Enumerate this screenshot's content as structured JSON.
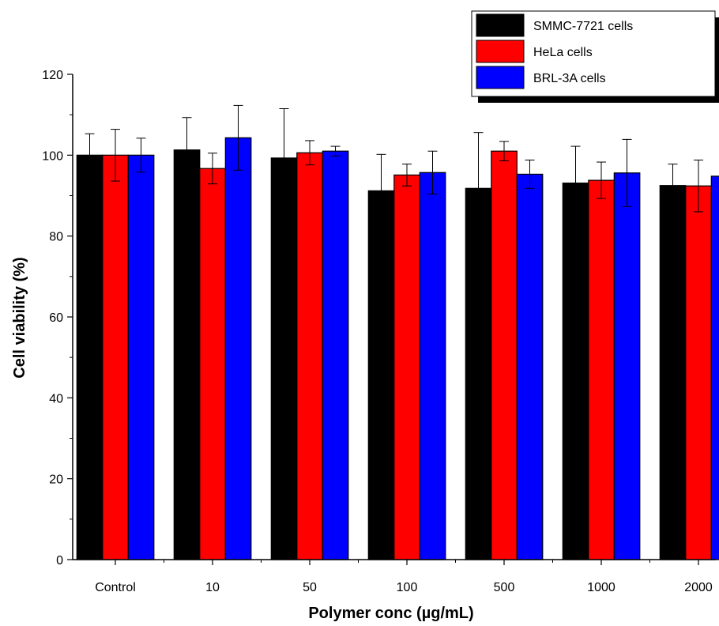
{
  "chart_data": {
    "type": "bar",
    "xlabel": "Polymer conc (µg/mL)",
    "ylabel": "Cell viability (%)",
    "ylim": [
      0,
      120
    ],
    "yticks": [
      0,
      20,
      40,
      60,
      80,
      100,
      120
    ],
    "categories": [
      "Control",
      "10",
      "50",
      "100",
      "500",
      "1000",
      "2000"
    ],
    "legend_position": "top-right",
    "grid": false,
    "series": [
      {
        "name": "SMMC-7721 cells",
        "color": "#000000",
        "values": [
          100.0,
          101.3,
          99.3,
          91.2,
          91.8,
          93.1,
          92.5
        ],
        "errors": [
          5.3,
          8.0,
          12.2,
          9.0,
          13.8,
          9.1,
          5.3
        ]
      },
      {
        "name": "HeLa cells",
        "color": "#ff0000",
        "values": [
          100.0,
          96.7,
          100.6,
          95.1,
          101.0,
          93.8,
          92.4
        ],
        "errors": [
          6.4,
          3.8,
          3.0,
          2.7,
          2.4,
          4.5,
          6.4
        ]
      },
      {
        "name": "BRL-3A cells",
        "color": "#0000ff",
        "values": [
          100.0,
          104.3,
          101.0,
          95.7,
          95.3,
          95.6,
          94.8
        ],
        "errors": [
          4.2,
          8.0,
          1.2,
          5.3,
          3.5,
          8.3,
          4.2
        ]
      }
    ]
  }
}
